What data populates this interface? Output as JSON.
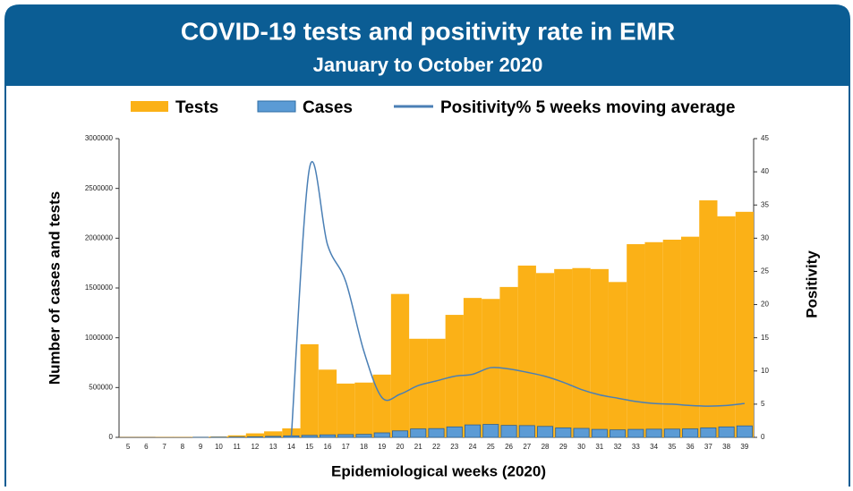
{
  "chart_data": {
    "type": "bar-line",
    "title": "COVID-19 tests and positivity rate in EMR",
    "subtitle": "January to October 2020",
    "ylabel": "Number of cases and tests",
    "y2label": "Positivity",
    "xlabel": "Epidemiological weeks (2020)",
    "categories": [
      "5",
      "6",
      "7",
      "8",
      "9",
      "10",
      "11",
      "12",
      "13",
      "14",
      "15",
      "16",
      "17",
      "18",
      "19",
      "20",
      "21",
      "22",
      "23",
      "24",
      "25",
      "26",
      "27",
      "28",
      "29",
      "30",
      "31",
      "32",
      "33",
      "34",
      "35",
      "36",
      "37",
      "38",
      "39"
    ],
    "series": [
      {
        "name": "Tests",
        "color": "#fbb117",
        "kind": "bar",
        "values": [
          2000,
          2000,
          3000,
          3000,
          5000,
          8000,
          20000,
          40000,
          60000,
          90000,
          935000,
          680000,
          540000,
          550000,
          630000,
          1440000,
          990000,
          990000,
          1230000,
          1400000,
          1390000,
          1510000,
          1725000,
          1650000,
          1690000,
          1700000,
          1690000,
          1560000,
          1940000,
          1960000,
          1985000,
          2015000,
          2380000,
          2220000,
          2265000
        ]
      },
      {
        "name": "Cases",
        "color": "#5b9bd5",
        "kind": "bar",
        "values": [
          0,
          0,
          0,
          0,
          1000,
          2000,
          3000,
          5000,
          10000,
          15000,
          20000,
          25000,
          28000,
          30000,
          45000,
          65000,
          85000,
          88000,
          105000,
          125000,
          130000,
          120000,
          118000,
          110000,
          95000,
          90000,
          80000,
          75000,
          80000,
          82000,
          83000,
          85000,
          95000,
          105000,
          115000
        ]
      },
      {
        "name": "Positivity% 5 weeks moving average",
        "color": "#4a7fb5",
        "kind": "line",
        "axis": "y2",
        "values": [
          null,
          null,
          null,
          null,
          null,
          null,
          null,
          null,
          null,
          0,
          40.5,
          29,
          23.5,
          13,
          6,
          6.5,
          7.8,
          8.5,
          9.2,
          9.5,
          10.5,
          10.3,
          9.8,
          9.2,
          8.3,
          7.2,
          6.4,
          5.9,
          5.4,
          5.1,
          5.0,
          4.8,
          4.7,
          4.8,
          5.1
        ]
      }
    ],
    "ylim": [
      0,
      3000000
    ],
    "yticks": [
      0,
      500000,
      1000000,
      1500000,
      2000000,
      2500000,
      3000000
    ],
    "y2lim": [
      0,
      45
    ],
    "y2ticks": [
      0,
      5,
      10,
      15,
      20,
      25,
      30,
      35,
      40,
      45
    ]
  }
}
